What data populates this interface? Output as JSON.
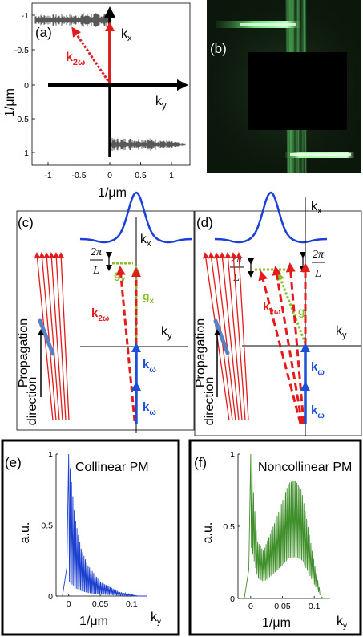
{
  "panel_a": {
    "label": "(a)",
    "kx": "k",
    "kx_sub": "x",
    "ky": "k",
    "ky_sub": "y",
    "k2w": "k",
    "k2w_sub": "2ω",
    "ylabel": "1/μm",
    "xlabel": "1/μm",
    "yticks": [
      "-1",
      "-0.5",
      "0",
      "0.5",
      "1"
    ],
    "xticks": [
      "-1",
      "-0.5",
      "0",
      "0.5",
      "1"
    ]
  },
  "panel_b": {
    "label": "(b)"
  },
  "panel_c": {
    "label": "(c)",
    "kx": "k",
    "kx_sub": "x",
    "ky": "k",
    "ky_sub": "y",
    "frac_num": "2π",
    "frac_den": "L",
    "gy": "g",
    "gy_sub": "y",
    "gx": "g",
    "gx_sub": "x",
    "k2w": "k",
    "k2w_sub": "2ω",
    "kw": "k",
    "kw_sub": "ω",
    "prop1": "Propagation",
    "prop2": "direction"
  },
  "panel_d": {
    "label": "(d)",
    "kx": "k",
    "kx_sub": "x",
    "ky": "k",
    "ky_sub": "y",
    "frac_num": "2π",
    "frac_den": "L",
    "g": "g",
    "k2w": "k",
    "k2w_sub": "2ω",
    "kw": "k",
    "kw_sub": "ω",
    "prop1": "Propagation",
    "prop2": "direction"
  },
  "chart_data": [
    {
      "type": "line",
      "panel": "(e)",
      "title": "Collinear PM",
      "xlabel": "k",
      "xlabel_sub": "y",
      "xunit": "1/μm",
      "ylabel": "a.u.",
      "xlim": [
        -0.02,
        0.125
      ],
      "ylim": [
        0,
        1.0
      ],
      "xticks": [
        "0",
        "0.05",
        "0.1"
      ],
      "yticks": [
        "0",
        "0.5",
        "1"
      ],
      "color": "#1b3fd0",
      "envelope": {
        "x": [
          0,
          0.01,
          0.02,
          0.03,
          0.05,
          0.08,
          0.11
        ],
        "y": [
          1.0,
          0.55,
          0.33,
          0.22,
          0.1,
          0.03,
          0.0
        ]
      }
    },
    {
      "type": "line",
      "panel": "(f)",
      "title": "Noncollinear PM",
      "xlabel": "k",
      "xlabel_sub": "y",
      "xunit": "1/μm",
      "ylabel": "a.u.",
      "xlim": [
        -0.02,
        0.125
      ],
      "ylim": [
        0,
        1.0
      ],
      "xticks": [
        "0",
        "0.05",
        "0.1"
      ],
      "yticks": [
        "0",
        "0.5",
        "1"
      ],
      "color": "#3f8f2a",
      "envelope": {
        "x": [
          0,
          0.01,
          0.02,
          0.04,
          0.06,
          0.07,
          0.08,
          0.1,
          0.11
        ],
        "y": [
          1.0,
          0.4,
          0.33,
          0.55,
          0.8,
          0.82,
          0.75,
          0.25,
          0.03
        ]
      }
    }
  ]
}
